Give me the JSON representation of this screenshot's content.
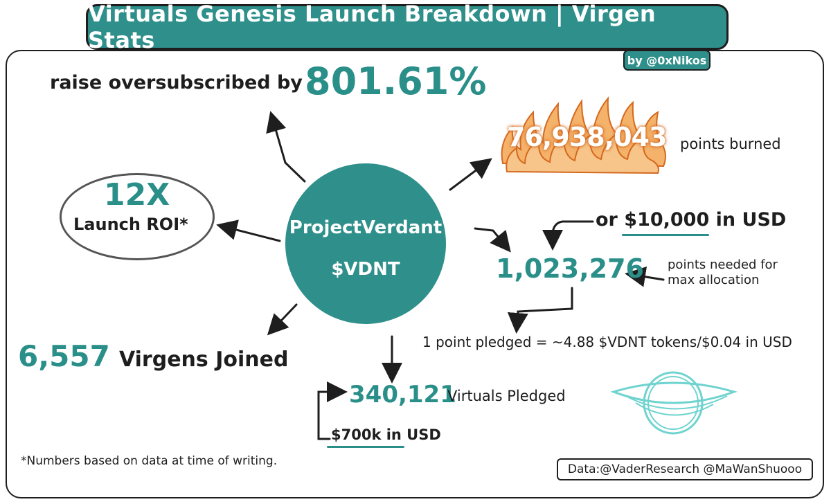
{
  "header": {
    "title": "Virtuals Genesis Launch Breakdown | Virgen Stats",
    "byline": "by @0xNikos"
  },
  "center": {
    "project_name": "ProjectVerdant",
    "ticker": "$VDNT"
  },
  "oversubscribed": {
    "label": "raise oversubscribed by",
    "value": "801.61%"
  },
  "roi": {
    "value": "12X",
    "label": "Launch ROI*"
  },
  "burned": {
    "value": "76,938,043",
    "label": "points burned"
  },
  "max_allocation": {
    "usd_prefix": "or",
    "usd_value": "$10,000",
    "usd_suffix": "in USD",
    "points": "1,023,276",
    "label_line1": "points needed for",
    "label_line2": "max allocation",
    "conversion": "1 point pledged = ~4.88 $VDNT tokens/$0.04 in USD"
  },
  "virgens": {
    "value": "6,557",
    "label": "Virgens Joined"
  },
  "pledged": {
    "value": "340,121",
    "label": "Virtuals Pledged",
    "usd": "$700k in USD"
  },
  "footnote": "*Numbers based on data at time of writing.",
  "source": "Data:@VaderResearch @MaWanShuooo",
  "colors": {
    "teal": "#2f908b",
    "flame_orange": "#f0a050",
    "flame_outline": "#d4691f",
    "logo_cyan": "#6fd3cf"
  },
  "icons": [
    "flames-icon",
    "black-hole-logo-icon"
  ]
}
